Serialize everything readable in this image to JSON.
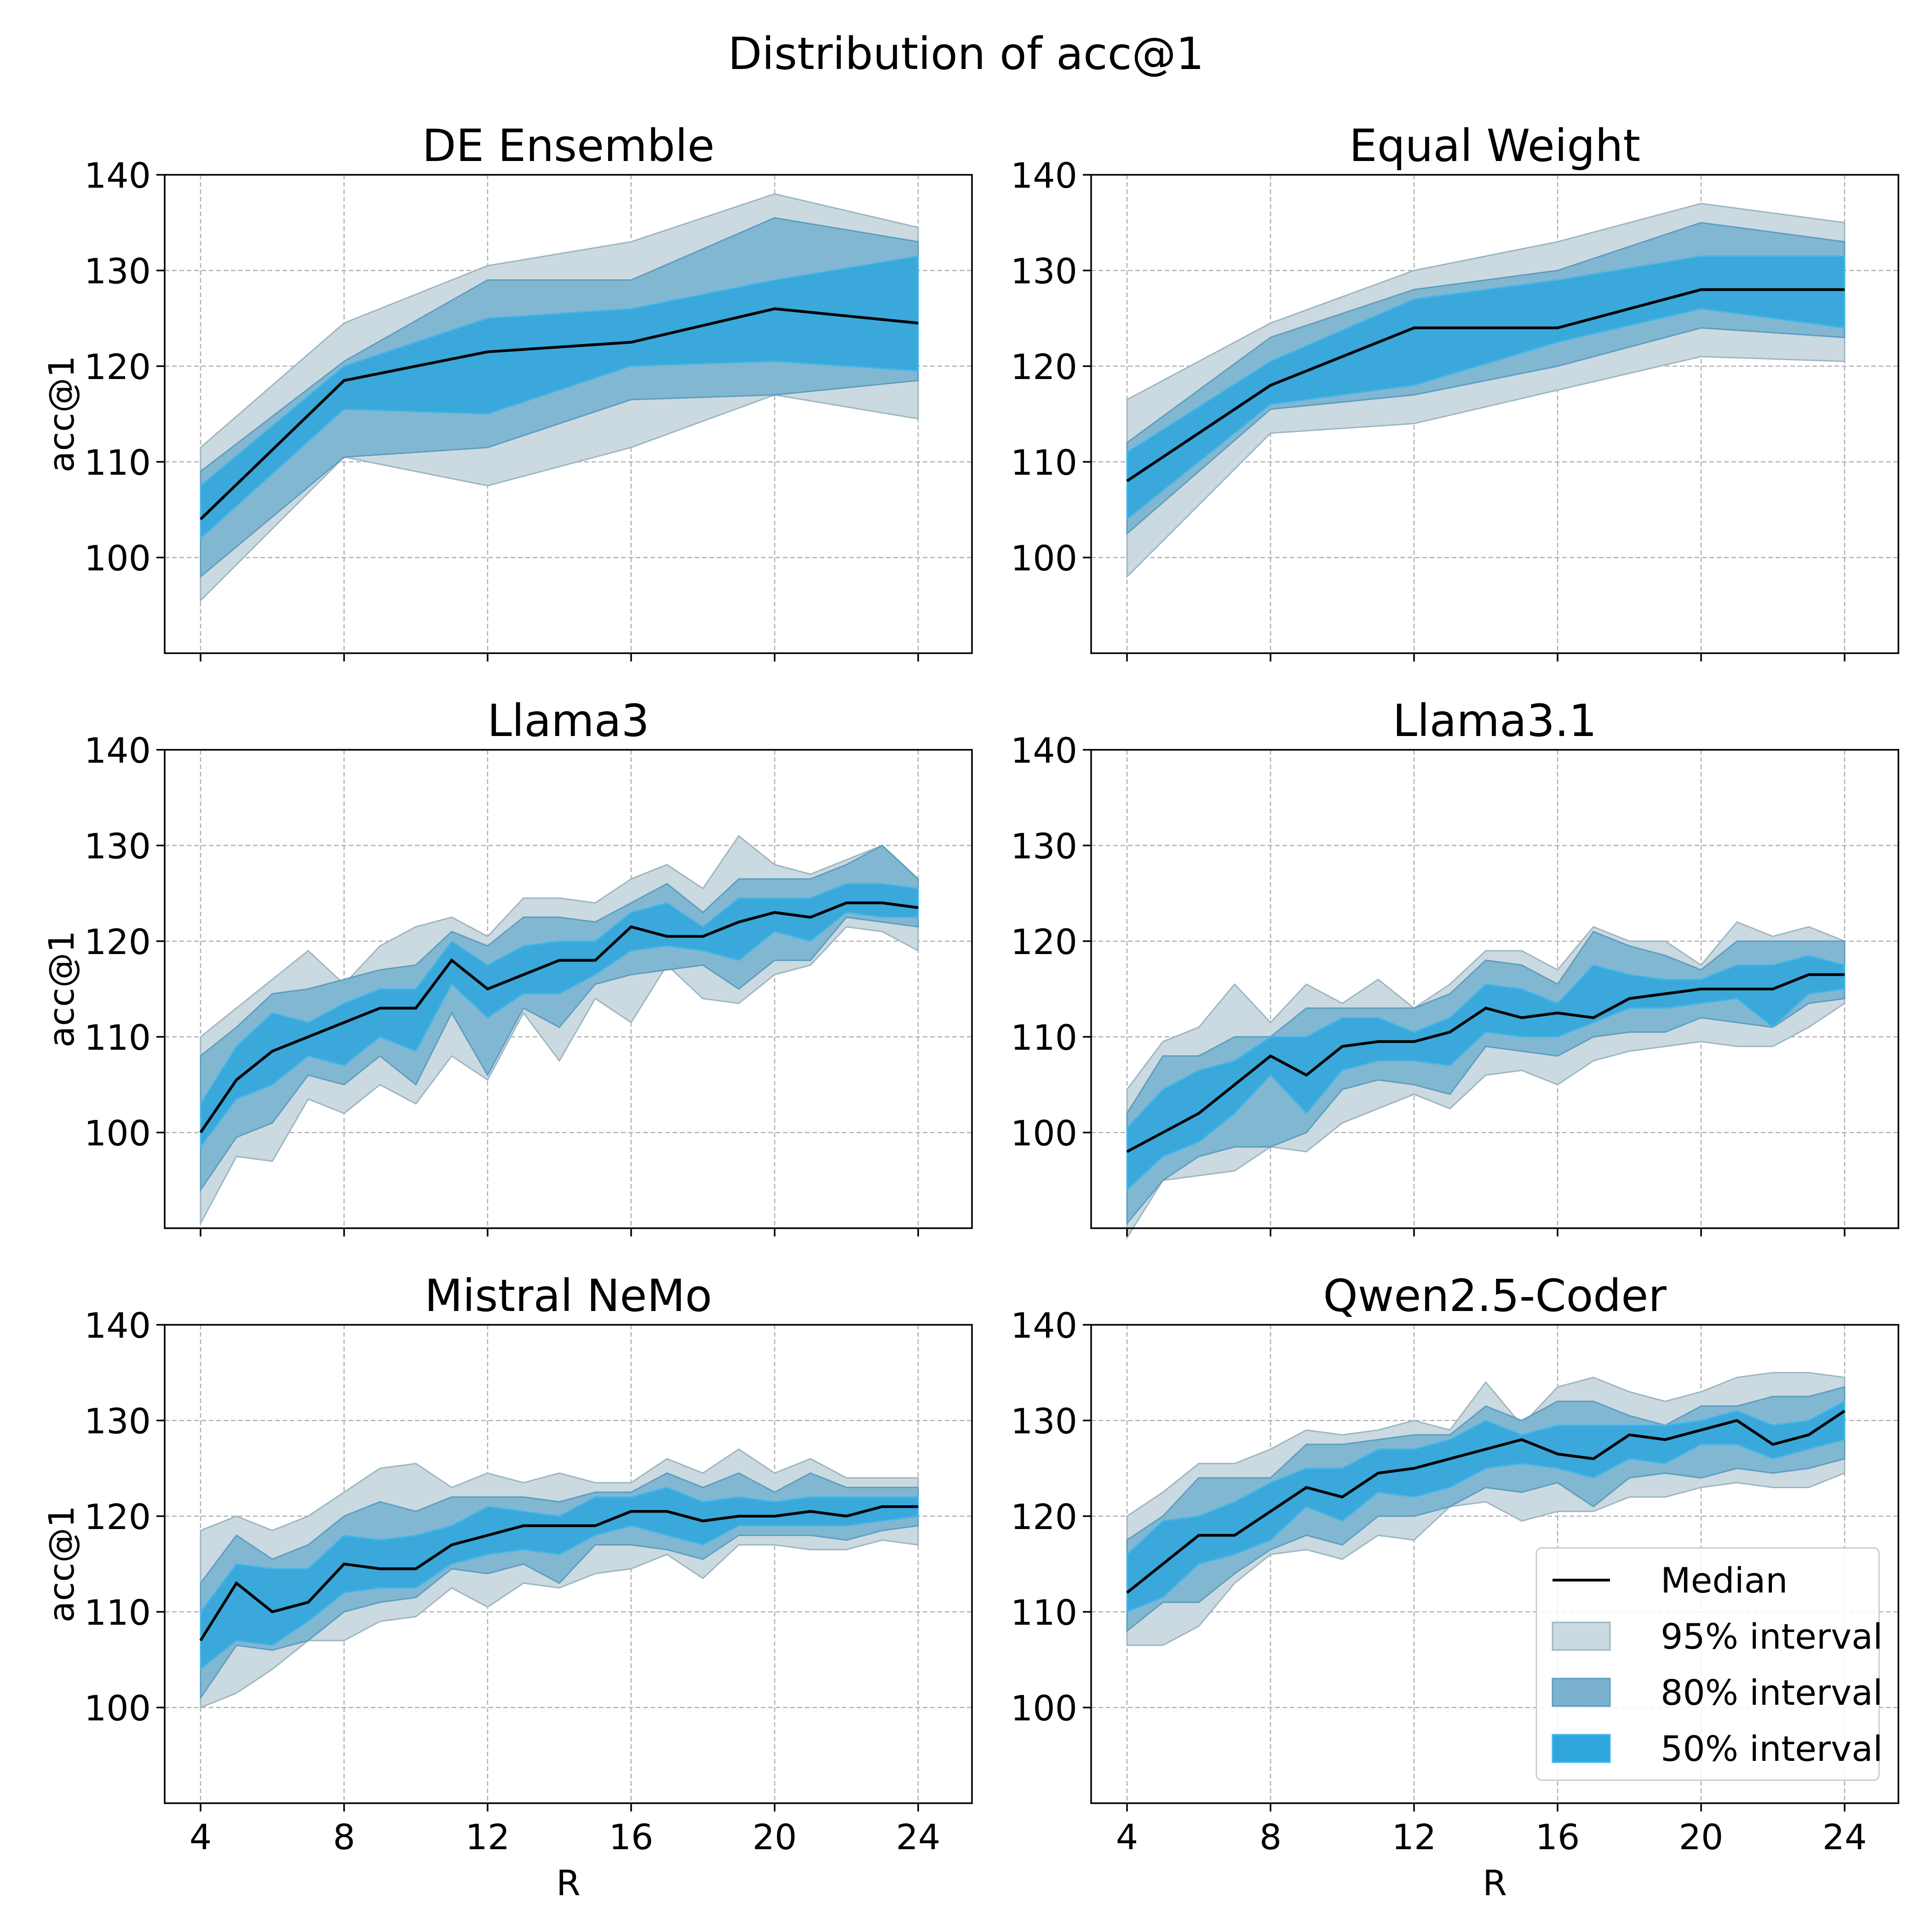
{
  "figure": {
    "title": "Distribution of acc@1"
  },
  "legend": {
    "placement": "lower-right of last panel",
    "entries": [
      {
        "label": "Median",
        "kind": "line"
      },
      {
        "label": "95% interval",
        "kind": "band95"
      },
      {
        "label": "80% interval",
        "kind": "band80"
      },
      {
        "label": "50% interval",
        "kind": "band50"
      }
    ]
  },
  "colors": {
    "median": "#000000",
    "band95_fill": "#cbd9e0",
    "band95_edge": "#9db6c2",
    "band80_fill": "#7ab2cf",
    "band80_edge": "#5c9dc0",
    "band50_fill": "#2ea6dd",
    "band50_edge": "#46b6ea",
    "grid": "#b0b0b0"
  },
  "chart_data": [
    {
      "type": "area",
      "title": "DE Ensemble",
      "xlabel": "",
      "ylabel": "acc@1",
      "xlim": [
        3,
        25.5
      ],
      "ylim": [
        90,
        140
      ],
      "grid": true,
      "xticks": [
        4,
        8,
        12,
        16,
        20,
        24
      ],
      "yticks": [
        100,
        110,
        120,
        130,
        140
      ],
      "x": [
        4,
        8,
        12,
        16,
        20,
        24
      ],
      "median": [
        104,
        118.5,
        121.5,
        122.5,
        126,
        124.5
      ],
      "p95_low": [
        95.5,
        110.5,
        107.5,
        111.5,
        117,
        114.5
      ],
      "p95_high": [
        111.5,
        124.5,
        130.5,
        133,
        138,
        134.5
      ],
      "p80_low": [
        98,
        110.5,
        111.5,
        116.5,
        117,
        118.5
      ],
      "p80_high": [
        109,
        120.5,
        129,
        129,
        135.5,
        133
      ],
      "p50_low": [
        102,
        115.5,
        115,
        120,
        120.5,
        119.5
      ],
      "p50_high": [
        107.5,
        120,
        125,
        126,
        129,
        131.5
      ]
    },
    {
      "type": "area",
      "title": "Equal Weight",
      "xlabel": "",
      "ylabel": "",
      "xlim": [
        3,
        25.5
      ],
      "ylim": [
        90,
        140
      ],
      "grid": true,
      "xticks": [
        4,
        8,
        12,
        16,
        20,
        24
      ],
      "yticks": [
        100,
        110,
        120,
        130,
        140
      ],
      "x": [
        4,
        8,
        12,
        16,
        20,
        24
      ],
      "median": [
        108,
        118,
        124,
        124,
        128,
        128
      ],
      "p95_low": [
        98,
        113,
        114,
        117.5,
        121,
        120.5
      ],
      "p95_high": [
        116.5,
        124.5,
        130,
        133,
        137,
        135
      ],
      "p80_low": [
        102.5,
        115.5,
        117,
        120,
        124,
        123
      ],
      "p80_high": [
        112,
        123,
        128,
        130,
        135,
        133
      ],
      "p50_low": [
        104,
        116,
        118,
        122.5,
        126,
        124
      ],
      "p50_high": [
        111,
        120.5,
        127,
        129,
        131.5,
        131.5
      ]
    },
    {
      "type": "area",
      "title": "Llama3",
      "xlabel": "",
      "ylabel": "acc@1",
      "xlim": [
        3,
        25.5
      ],
      "ylim": [
        90,
        140
      ],
      "grid": true,
      "xticks": [
        4,
        8,
        12,
        16,
        20,
        24
      ],
      "yticks": [
        100,
        110,
        120,
        130,
        140
      ],
      "x": [
        4,
        5,
        6,
        7,
        8,
        9,
        10,
        11,
        12,
        13,
        14,
        15,
        16,
        17,
        18,
        19,
        20,
        21,
        22,
        23,
        24
      ],
      "median": [
        100,
        105.5,
        108.5,
        110,
        111.5,
        113,
        113,
        118,
        115,
        116.5,
        118,
        118,
        121.5,
        120.5,
        120.5,
        122,
        123,
        122.5,
        124,
        124,
        123.5
      ],
      "p95_low": [
        90.5,
        97.5,
        97,
        103.5,
        102,
        105,
        103,
        108,
        105.5,
        112.5,
        107.5,
        114,
        111.5,
        117.5,
        114,
        113.5,
        116.5,
        117.5,
        121.5,
        121,
        119
      ],
      "p95_high": [
        110,
        113,
        116,
        119,
        115.5,
        119.5,
        121.5,
        122.5,
        120.5,
        124.5,
        124.5,
        124,
        126.5,
        128,
        125.5,
        131,
        128,
        127,
        128.5,
        130,
        126.5
      ],
      "p80_low": [
        94,
        99.5,
        101,
        106,
        105,
        108,
        105,
        112.5,
        106,
        113,
        111,
        115.5,
        116.5,
        117,
        117.5,
        115,
        118,
        118,
        122.5,
        122,
        121.5
      ],
      "p80_high": [
        108,
        111,
        114.5,
        115,
        116,
        117,
        117.5,
        121,
        119.5,
        122.5,
        122.5,
        122,
        124,
        126,
        123,
        126.5,
        126.5,
        126.5,
        128,
        130,
        126.5
      ],
      "p50_low": [
        98.5,
        103.5,
        105,
        108,
        107,
        110,
        108.5,
        115.5,
        112,
        114.5,
        114.5,
        116.5,
        119,
        119.5,
        119,
        118,
        121,
        120,
        123,
        122.5,
        122.5
      ],
      "p50_high": [
        103,
        109,
        112.5,
        111.5,
        113.5,
        115,
        115,
        120,
        117.5,
        119.5,
        120,
        120,
        123,
        124,
        121.5,
        124.5,
        124.5,
        124.5,
        126,
        126,
        125.5
      ]
    },
    {
      "type": "area",
      "title": "Llama3.1",
      "xlabel": "",
      "ylabel": "",
      "xlim": [
        3,
        25.5
      ],
      "ylim": [
        90,
        140
      ],
      "grid": true,
      "xticks": [
        4,
        8,
        12,
        16,
        20,
        24
      ],
      "yticks": [
        100,
        110,
        120,
        130,
        140
      ],
      "x": [
        4,
        5,
        6,
        7,
        8,
        9,
        10,
        11,
        12,
        13,
        14,
        15,
        16,
        17,
        18,
        19,
        20,
        21,
        22,
        23,
        24
      ],
      "median": [
        98,
        100,
        102,
        105,
        108,
        106,
        109,
        109.5,
        109.5,
        110.5,
        113,
        112,
        112.5,
        112,
        114,
        114.5,
        115,
        115,
        115,
        116.5,
        116.5
      ],
      "p95_low": [
        89,
        95,
        95.5,
        96,
        98.5,
        98,
        101,
        102.5,
        104,
        102.5,
        106,
        106.5,
        105,
        107.5,
        108.5,
        109,
        109.5,
        109,
        109,
        111,
        113.5
      ],
      "p95_high": [
        104.5,
        109.5,
        111,
        115.5,
        111.5,
        115.5,
        113.5,
        116,
        113,
        115.5,
        119,
        119,
        117,
        121.5,
        120,
        120,
        117.5,
        122,
        120.5,
        121.5,
        120
      ],
      "p80_low": [
        90.5,
        95,
        97.5,
        98.5,
        98.5,
        100,
        104.5,
        105.5,
        105,
        104,
        109,
        108.5,
        108,
        110,
        110.5,
        110.5,
        112,
        111.5,
        111,
        113.5,
        114
      ],
      "p80_high": [
        102,
        108,
        108,
        110,
        110,
        113,
        113,
        113,
        113,
        114.5,
        118,
        117.5,
        115.5,
        121,
        119.5,
        118.5,
        117,
        120,
        120,
        120,
        120
      ],
      "p50_low": [
        94,
        97.5,
        99,
        102,
        106,
        102,
        106.5,
        107.5,
        107.5,
        107,
        110.5,
        110,
        110,
        111.5,
        113,
        113,
        113.5,
        114,
        111,
        114.5,
        115
      ],
      "p50_high": [
        100.5,
        104.5,
        106.5,
        107.5,
        110,
        110,
        112,
        112,
        110.5,
        112,
        115.5,
        115,
        113.5,
        117.5,
        116.5,
        116,
        116,
        117.5,
        117.5,
        118.5,
        117.5
      ]
    },
    {
      "type": "area",
      "title": "Mistral NeMo",
      "xlabel": "R",
      "ylabel": "acc@1",
      "xlim": [
        3,
        25.5
      ],
      "ylim": [
        90,
        140
      ],
      "grid": true,
      "xticks": [
        4,
        8,
        12,
        16,
        20,
        24
      ],
      "yticks": [
        100,
        110,
        120,
        130,
        140
      ],
      "x": [
        4,
        5,
        6,
        7,
        8,
        9,
        10,
        11,
        12,
        13,
        14,
        15,
        16,
        17,
        18,
        19,
        20,
        21,
        22,
        23,
        24
      ],
      "median": [
        107,
        113,
        110,
        111,
        115,
        114.5,
        114.5,
        117,
        118,
        119,
        119,
        119,
        120.5,
        120.5,
        119.5,
        120,
        120,
        120.5,
        120,
        121,
        121
      ],
      "p95_low": [
        100,
        101.5,
        104,
        107,
        107,
        109,
        109.5,
        112.5,
        110.5,
        113,
        112.5,
        114,
        114.5,
        116,
        113.5,
        117,
        117,
        116.5,
        116.5,
        117.5,
        117
      ],
      "p95_high": [
        118.5,
        120,
        118.5,
        120,
        122.5,
        125,
        125.5,
        123,
        124.5,
        123.5,
        124.5,
        123.5,
        123.5,
        126,
        124.5,
        127,
        124.5,
        126,
        124,
        124,
        124
      ],
      "p80_low": [
        101,
        106.5,
        106,
        107,
        110,
        111,
        111.5,
        114.5,
        114,
        115,
        113,
        117,
        117,
        116.5,
        115.5,
        118,
        118,
        118,
        117.5,
        118.5,
        119
      ],
      "p80_high": [
        113,
        118,
        115.5,
        117,
        120,
        121.5,
        120.5,
        122,
        122,
        122,
        121.5,
        122.5,
        122.5,
        124.5,
        123,
        124.5,
        122.5,
        124.5,
        123,
        123,
        123
      ],
      "p50_low": [
        104,
        107,
        106.5,
        109,
        112,
        112.5,
        112.5,
        115,
        116,
        116.5,
        116,
        118,
        119,
        118,
        117,
        119,
        119,
        119,
        119,
        119.5,
        120
      ],
      "p50_high": [
        110,
        115,
        114.5,
        114.5,
        118,
        117.5,
        118,
        119,
        121,
        120.5,
        120,
        122,
        122,
        123,
        121.5,
        122,
        121.5,
        122,
        122,
        122,
        122
      ]
    },
    {
      "type": "area",
      "title": "Qwen2.5-Coder",
      "xlabel": "R",
      "ylabel": "",
      "xlim": [
        3,
        25.5
      ],
      "ylim": [
        90,
        140
      ],
      "grid": true,
      "xticks": [
        4,
        8,
        12,
        16,
        20,
        24
      ],
      "yticks": [
        100,
        110,
        120,
        130,
        140
      ],
      "x": [
        4,
        5,
        6,
        7,
        8,
        9,
        10,
        11,
        12,
        13,
        14,
        15,
        16,
        17,
        18,
        19,
        20,
        21,
        22,
        23,
        24
      ],
      "median": [
        112,
        115,
        118,
        118,
        120.5,
        123,
        122,
        124.5,
        125,
        126,
        127,
        128,
        126.5,
        126,
        128.5,
        128,
        129,
        130,
        127.5,
        128.5,
        131
      ],
      "p95_low": [
        106.5,
        106.5,
        108.5,
        113,
        116,
        116.5,
        115.5,
        118,
        117.5,
        121,
        121.5,
        119.5,
        120.5,
        120.5,
        122,
        122,
        123,
        123.5,
        123,
        123,
        124.5
      ],
      "p95_high": [
        120,
        122.5,
        125.5,
        125.5,
        127,
        129,
        128.5,
        129,
        130,
        129,
        134,
        129.5,
        133.5,
        134.5,
        133,
        132,
        133,
        134.5,
        135,
        135,
        134.5
      ],
      "p80_low": [
        108,
        111,
        111,
        114,
        116.5,
        118,
        117,
        120,
        120,
        121,
        123,
        122.5,
        123.5,
        121,
        124,
        124.5,
        124,
        125,
        124.5,
        125,
        126
      ],
      "p80_high": [
        117.5,
        120,
        124,
        124,
        124,
        127.5,
        127.5,
        128,
        128.5,
        128.5,
        131.5,
        130,
        132,
        132,
        130.5,
        129.5,
        131.5,
        131.5,
        132.5,
        132.5,
        133.5
      ],
      "p50_low": [
        110,
        111.5,
        115,
        116,
        117.5,
        121,
        119.5,
        122.5,
        122,
        123,
        125,
        125.5,
        125,
        124,
        126,
        125.5,
        127.5,
        127.5,
        126,
        127,
        128
      ],
      "p50_high": [
        116,
        119.5,
        120,
        121.5,
        123.5,
        125,
        125,
        127,
        127,
        128,
        130,
        128.5,
        129.5,
        129.5,
        129.5,
        129.5,
        130,
        131,
        129.5,
        130,
        132
      ]
    }
  ]
}
